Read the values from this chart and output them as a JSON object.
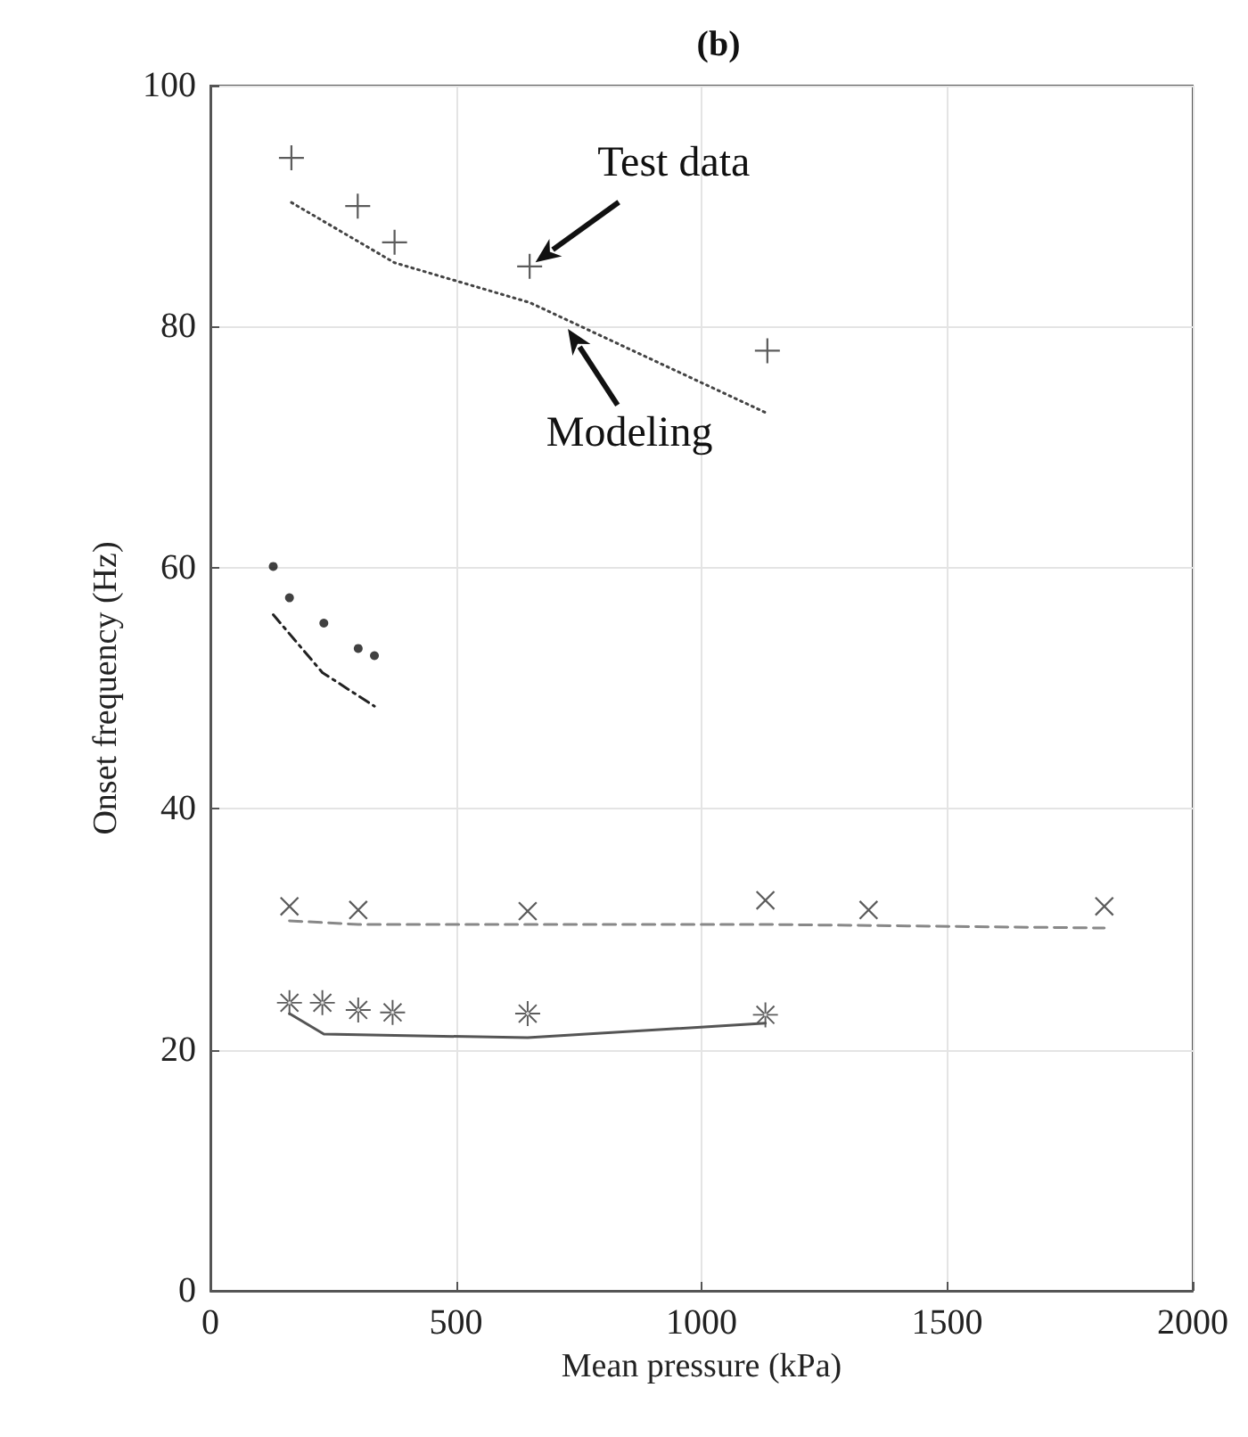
{
  "chart_data": {
    "type": "scatter",
    "title": "(b)",
    "xlabel": "Mean pressure (kPa)",
    "ylabel": "Onset frequency (Hz)",
    "xlim": [
      0,
      2000
    ],
    "xticks": [
      0,
      500,
      1000,
      1500,
      2000
    ],
    "ylim": [
      0,
      100
    ],
    "yticks": [
      0,
      20,
      40,
      60,
      80,
      100
    ],
    "grid": true,
    "annotations": [
      {
        "text": "Test data",
        "x": 650,
        "y": 85
      },
      {
        "text": "Modeling",
        "x": 720,
        "y": 80.3
      }
    ],
    "series": [
      {
        "marker": "plus",
        "color": "#333333",
        "x": [
          165,
          300,
          375,
          650,
          1134
        ],
        "values": [
          94,
          90,
          87,
          85,
          78
        ]
      },
      {
        "type": "line",
        "line_style": "dotted",
        "color": "#444444",
        "x": [
          165,
          375,
          650,
          1134
        ],
        "values": [
          90.3,
          85.3,
          82,
          72.8
        ]
      },
      {
        "marker": "circle",
        "color": "#111111",
        "x": [
          128,
          161,
          231,
          301,
          334
        ],
        "values": [
          60.1,
          57.5,
          55.4,
          53.3,
          52.7
        ]
      },
      {
        "type": "line",
        "line_style": "dashdot",
        "color": "#222222",
        "x": [
          128,
          228,
          334
        ],
        "values": [
          56.1,
          51.3,
          48.5
        ]
      },
      {
        "marker": "cross",
        "color": "#333333",
        "x": [
          161,
          301,
          646,
          1130,
          1340,
          1820
        ],
        "values": [
          31.9,
          31.6,
          31.5,
          32.4,
          31.6,
          31.9
        ]
      },
      {
        "type": "line",
        "line_style": "dashed",
        "color": "#888888",
        "x": [
          161,
          301,
          1130,
          1820
        ],
        "values": [
          30.7,
          30.4,
          30.4,
          30.1
        ]
      },
      {
        "marker": "star",
        "color": "#333333",
        "x": [
          161,
          228,
          301,
          371,
          646,
          1130
        ],
        "values": [
          23.9,
          23.9,
          23.3,
          23.1,
          23.0,
          22.9
        ]
      },
      {
        "type": "line",
        "line_style": "solid",
        "color": "#555555",
        "x": [
          161,
          231,
          646,
          1130
        ],
        "values": [
          23.0,
          21.3,
          21.0,
          22.2
        ]
      }
    ]
  }
}
